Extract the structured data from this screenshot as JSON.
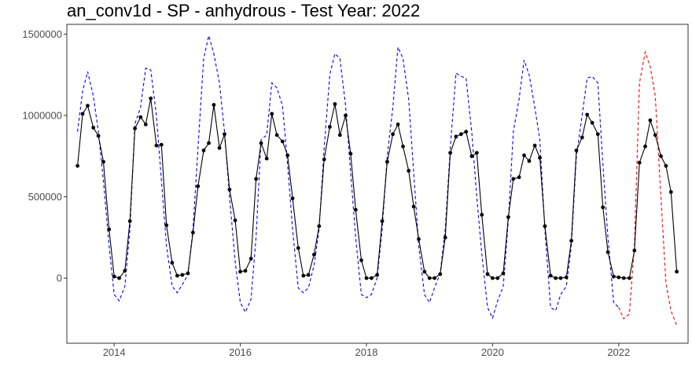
{
  "chart_data": {
    "type": "line",
    "title": "an_conv1d - SP - anhydrous - Test Year: 2022",
    "xlabel": "",
    "ylabel": "",
    "xlim": [
      2013.25,
      2023.1
    ],
    "ylim": [
      -400000,
      1560000
    ],
    "x_ticks": [
      2014,
      2016,
      2018,
      2020,
      2022
    ],
    "x_tick_labels": [
      "2014",
      "2016",
      "2018",
      "2020",
      "2022"
    ],
    "y_ticks": [
      0,
      500000,
      1000000,
      1500000
    ],
    "y_tick_labels": [
      "0",
      "500000",
      "1000000",
      "1500000"
    ],
    "grid": false,
    "series": [
      {
        "style": "solid-with-points",
        "color": "#000000",
        "x": [
          2013.42,
          2013.5,
          2013.58,
          2013.67,
          2013.75,
          2013.83,
          2013.92,
          2014.0,
          2014.08,
          2014.17,
          2014.25,
          2014.33,
          2014.42,
          2014.5,
          2014.58,
          2014.67,
          2014.75,
          2014.83,
          2014.92,
          2015.0,
          2015.08,
          2015.17,
          2015.25,
          2015.33,
          2015.42,
          2015.5,
          2015.58,
          2015.67,
          2015.75,
          2015.83,
          2015.92,
          2016.0,
          2016.08,
          2016.17,
          2016.25,
          2016.33,
          2016.42,
          2016.5,
          2016.58,
          2016.67,
          2016.75,
          2016.83,
          2016.92,
          2017.0,
          2017.08,
          2017.17,
          2017.25,
          2017.33,
          2017.42,
          2017.5,
          2017.58,
          2017.67,
          2017.75,
          2017.83,
          2017.92,
          2018.0,
          2018.08,
          2018.17,
          2018.25,
          2018.33,
          2018.42,
          2018.5,
          2018.58,
          2018.67,
          2018.75,
          2018.83,
          2018.92,
          2019.0,
          2019.08,
          2019.17,
          2019.25,
          2019.33,
          2019.42,
          2019.5,
          2019.58,
          2019.67,
          2019.75,
          2019.83,
          2019.92,
          2020.0,
          2020.08,
          2020.17,
          2020.25,
          2020.33,
          2020.42,
          2020.5,
          2020.58,
          2020.67,
          2020.75,
          2020.83,
          2020.92,
          2021.0,
          2021.08,
          2021.17,
          2021.25,
          2021.33,
          2021.42,
          2021.5,
          2021.58,
          2021.67,
          2021.75,
          2021.83,
          2021.92,
          2022.0,
          2022.08,
          2022.17,
          2022.25,
          2022.33,
          2022.42,
          2022.5,
          2022.58,
          2022.67,
          2022.75,
          2022.83,
          2022.92
        ],
        "y": [
          690000,
          1010000,
          1060000,
          925000,
          875000,
          715000,
          300000,
          10000,
          0,
          45000,
          350000,
          920000,
          990000,
          945000,
          1105000,
          815000,
          820000,
          325000,
          95000,
          15000,
          20000,
          30000,
          280000,
          565000,
          785000,
          830000,
          1065000,
          800000,
          885000,
          545000,
          355000,
          40000,
          45000,
          120000,
          610000,
          830000,
          735000,
          1010000,
          880000,
          840000,
          755000,
          490000,
          185000,
          15000,
          20000,
          145000,
          320000,
          730000,
          930000,
          1070000,
          880000,
          1000000,
          765000,
          420000,
          110000,
          0,
          0,
          20000,
          350000,
          715000,
          885000,
          945000,
          810000,
          660000,
          440000,
          240000,
          40000,
          0,
          0,
          25000,
          250000,
          770000,
          870000,
          885000,
          900000,
          750000,
          770000,
          390000,
          25000,
          0,
          0,
          30000,
          375000,
          610000,
          620000,
          755000,
          720000,
          815000,
          740000,
          320000,
          15000,
          0,
          0,
          5000,
          230000,
          785000,
          865000,
          1005000,
          955000,
          885000,
          435000,
          160000,
          10000,
          5000,
          0,
          0,
          170000,
          710000,
          810000,
          970000,
          880000,
          750000,
          690000,
          530000,
          40000
        ]
      },
      {
        "style": "dashed",
        "color": "#0000ff",
        "x": [
          2013.42,
          2013.5,
          2013.58,
          2013.67,
          2013.75,
          2013.83,
          2013.92,
          2014.0,
          2014.08,
          2014.17,
          2014.25,
          2014.33,
          2014.42,
          2014.5,
          2014.58,
          2014.67,
          2014.75,
          2014.83,
          2014.92,
          2015.0,
          2015.08,
          2015.17,
          2015.25,
          2015.33,
          2015.42,
          2015.5,
          2015.58,
          2015.67,
          2015.75,
          2015.83,
          2015.92,
          2016.0,
          2016.08,
          2016.17,
          2016.25,
          2016.33,
          2016.42,
          2016.5,
          2016.58,
          2016.67,
          2016.75,
          2016.83,
          2016.92,
          2017.0,
          2017.08,
          2017.17,
          2017.25,
          2017.33,
          2017.42,
          2017.5,
          2017.58,
          2017.67,
          2017.75,
          2017.83,
          2017.92,
          2018.0,
          2018.08,
          2018.17,
          2018.25,
          2018.33,
          2018.42,
          2018.5,
          2018.58,
          2018.67,
          2018.75,
          2018.83,
          2018.92,
          2019.0,
          2019.08,
          2019.17,
          2019.25,
          2019.33,
          2019.42,
          2019.5,
          2019.58,
          2019.67,
          2019.75,
          2019.83,
          2019.92,
          2020.0,
          2020.08,
          2020.17,
          2020.25,
          2020.33,
          2020.42,
          2020.5,
          2020.58,
          2020.67,
          2020.75,
          2020.83,
          2020.92,
          2021.0,
          2021.08,
          2021.17,
          2021.25,
          2021.33,
          2021.42,
          2021.5,
          2021.58,
          2021.67,
          2021.75,
          2021.83,
          2021.92,
          2022.0
        ],
        "y": [
          900000,
          1150000,
          1270000,
          1120000,
          900000,
          600000,
          200000,
          -100000,
          -140000,
          -50000,
          300000,
          950000,
          1050000,
          1290000,
          1280000,
          1000000,
          600000,
          200000,
          -50000,
          -90000,
          -40000,
          20000,
          300000,
          800000,
          1350000,
          1490000,
          1380000,
          1200000,
          900000,
          500000,
          100000,
          -150000,
          -210000,
          -130000,
          250000,
          850000,
          880000,
          1200000,
          1170000,
          1060000,
          700000,
          300000,
          -60000,
          -90000,
          -60000,
          80000,
          300000,
          800000,
          1250000,
          1380000,
          1350000,
          1060000,
          650000,
          250000,
          -100000,
          -120000,
          -100000,
          0,
          300000,
          750000,
          1050000,
          1420000,
          1350000,
          1100000,
          650000,
          200000,
          -100000,
          -150000,
          -60000,
          30000,
          300000,
          800000,
          1260000,
          1240000,
          1230000,
          900000,
          500000,
          150000,
          -180000,
          -245000,
          -140000,
          -50000,
          350000,
          900000,
          1100000,
          1340000,
          1250000,
          1050000,
          850000,
          300000,
          -180000,
          -200000,
          -100000,
          -50000,
          200000,
          750000,
          1000000,
          1230000,
          1240000,
          1200000,
          700000,
          250000,
          -150000,
          -180000
        ]
      },
      {
        "style": "dashed",
        "color": "#ff0000",
        "x": [
          2022.0,
          2022.08,
          2022.17,
          2022.25,
          2022.33,
          2022.42,
          2022.5,
          2022.58,
          2022.67,
          2022.75,
          2022.83,
          2022.92
        ],
        "y": [
          -180000,
          -250000,
          -220000,
          200000,
          1200000,
          1390000,
          1300000,
          1120000,
          500000,
          -30000,
          -200000,
          -290000
        ]
      }
    ]
  }
}
